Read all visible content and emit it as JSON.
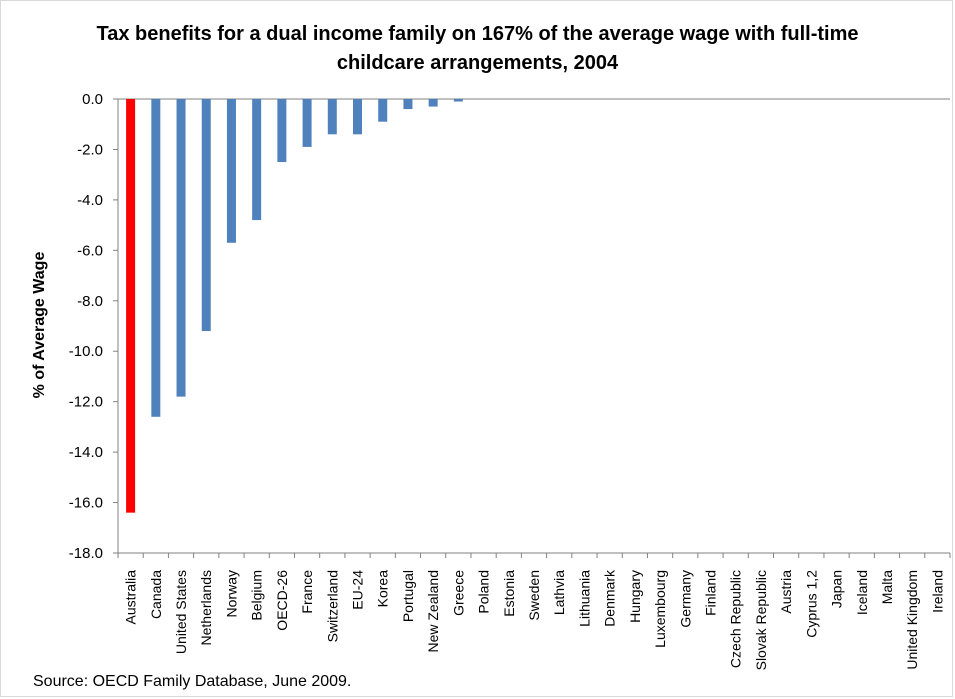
{
  "colors": {
    "bar": "#4f81bd",
    "highlight": "#ff0000",
    "axis": "#808080"
  },
  "chart_data": {
    "type": "bar",
    "title": "Tax benefits for a dual income family  on 167% of the average wage with full-time childcare arrangements, 2004",
    "ylabel": "% of Average Wage",
    "xlabel": "",
    "ylim": [
      -18,
      0
    ],
    "yticks": [
      "0.0",
      "-2.0",
      "-4.0",
      "-6.0",
      "-8.0",
      "-10.0",
      "-12.0",
      "-14.0",
      "-16.0",
      "-18.0"
    ],
    "grid": false,
    "highlight_category": "Australia",
    "categories": [
      "Australia",
      "Canada",
      "United States",
      "Netherlands",
      "Norway",
      "Belgium",
      "OECD-26",
      "France",
      "Switzerland",
      "EU-24",
      "Korea",
      "Portugal",
      "New Zealand",
      "Greece",
      "Poland",
      "Estonia",
      "Sweden",
      "Lathvia",
      "Lithuania",
      "Denmark",
      "Hungary",
      "Luxembourg",
      "Germany",
      "Finland",
      "Czech Republic",
      "Slovak Republic",
      "Austria",
      "Cyprus 1,2",
      "Japan",
      "Iceland",
      "Malta",
      "United Kingdom",
      "Ireland"
    ],
    "values": [
      -16.4,
      -12.6,
      -11.8,
      -9.2,
      -5.7,
      -4.8,
      -2.5,
      -1.9,
      -1.4,
      -1.4,
      -0.9,
      -0.4,
      -0.3,
      -0.1,
      0,
      0,
      0,
      0,
      0,
      0,
      0,
      0,
      0,
      0,
      0,
      0,
      0,
      0,
      0,
      0,
      0,
      0,
      0
    ]
  },
  "source": "Source: OECD Family Database, June 2009."
}
